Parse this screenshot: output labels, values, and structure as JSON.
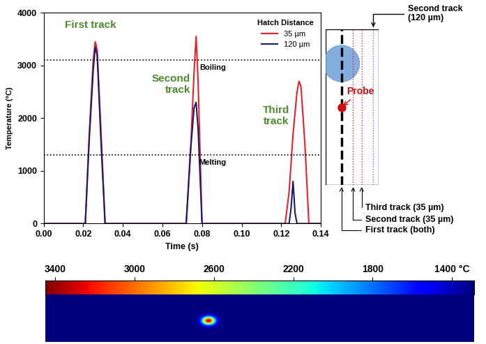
{
  "chart_data": {
    "type": "line",
    "x_label": "Time (s)",
    "y_label": "Temperature (°C)",
    "xlim": [
      0,
      0.14
    ],
    "xticks": [
      {
        "value": 0,
        "label": "0.00"
      },
      {
        "value": 0.02,
        "label": "0.02"
      },
      {
        "value": 0.04,
        "label": "0.04"
      },
      {
        "value": 0.06,
        "label": "0.06"
      },
      {
        "value": 0.08,
        "label": "0.08"
      },
      {
        "value": 0.1,
        "label": "0.10"
      },
      {
        "value": 0.12,
        "label": "0.12"
      },
      {
        "value": 0.14,
        "label": "0.14"
      }
    ],
    "ylim": [
      0,
      4000
    ],
    "yticks": [
      0,
      1000,
      2000,
      3000,
      4000
    ],
    "legend": "upper right",
    "legend_title": "Hatch Distance",
    "series": [
      {
        "name": "35 µm",
        "color": "#e8202a",
        "x": [
          0,
          0.021,
          0.023,
          0.025,
          0.026,
          0.027,
          0.029,
          0.031,
          0.072,
          0.074,
          0.076,
          0.077,
          0.078,
          0.08,
          0.122,
          0.124,
          0.126,
          0.128,
          0.129,
          0.13,
          0.132,
          0.134,
          0.14
        ],
        "values": [
          0,
          0,
          1700,
          3100,
          3450,
          3300,
          1700,
          0,
          0,
          1200,
          2900,
          3550,
          2700,
          0,
          0,
          600,
          1700,
          2500,
          2700,
          2600,
          1500,
          0,
          0
        ]
      },
      {
        "name": "120 µm",
        "color": "#1a1a6e",
        "x": [
          0,
          0.021,
          0.023,
          0.025,
          0.026,
          0.027,
          0.029,
          0.031,
          0.072,
          0.074,
          0.076,
          0.077,
          0.078,
          0.08,
          0.124,
          0.125,
          0.126,
          0.127,
          0.128,
          0.14
        ],
        "values": [
          0,
          0,
          1600,
          2900,
          3350,
          3200,
          1500,
          0,
          0,
          1300,
          2200,
          2300,
          1800,
          0,
          0,
          300,
          800,
          200,
          0,
          0
        ]
      }
    ],
    "reference_lines": [
      {
        "label": "Boiling",
        "value": 3100
      },
      {
        "label": "Melting",
        "value": 1300
      }
    ],
    "annotations": [
      "First track",
      "Second\ntrack",
      "Third\ntrack"
    ]
  },
  "schematic": {
    "top_label": "Second track\n(120 µm)",
    "probe_label": "Probe",
    "bottom_labels": [
      "Third track (35 µm)",
      "Second track (35 µm)",
      "First track (both)"
    ]
  },
  "thermal_image": {
    "colorbar_range": [
      3450,
      1290
    ],
    "colorbar_ticks": [
      3400,
      3000,
      2600,
      2200,
      1800,
      {
        "value": 1400,
        "label": "1400 °C"
      }
    ],
    "spot_peak": 3400
  }
}
